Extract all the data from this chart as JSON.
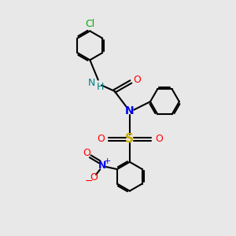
{
  "bg_color": "#e8e8e8",
  "colors": {
    "N": "#0000ee",
    "O": "#ff0000",
    "S": "#ccaa00",
    "Cl": "#00aa00",
    "NH": "#008080",
    "C": "#000000"
  },
  "bond_lw": 1.5,
  "font_size": 9
}
